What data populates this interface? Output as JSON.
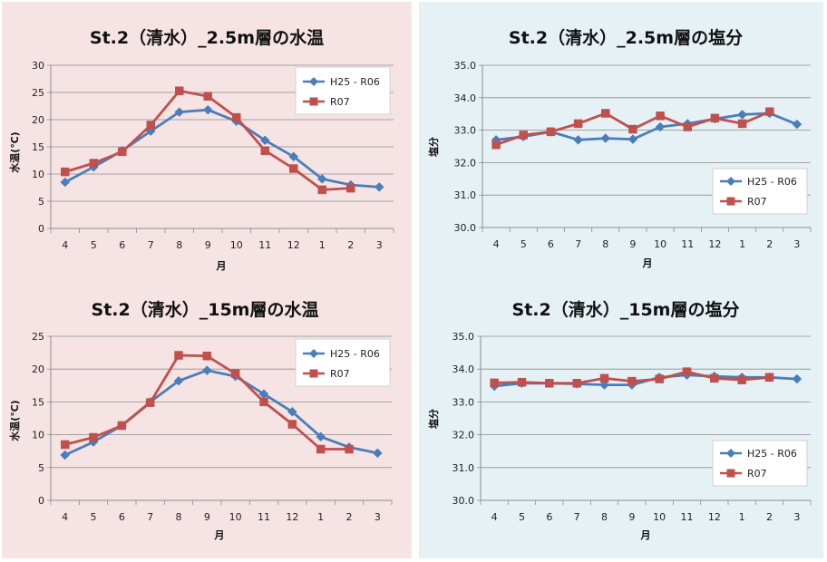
{
  "colors": {
    "series1": "#4a7ebb",
    "series2": "#c0504d",
    "panel_temp": "#f6e4e4",
    "panel_salinity": "#e6f1f6"
  },
  "chart_data": [
    {
      "id": "temp25",
      "type": "line",
      "title": "St.2（清水）_2.5m層の水温",
      "xlabel": "月",
      "ylabel": "水温(℃)",
      "categories": [
        "4",
        "5",
        "6",
        "7",
        "8",
        "9",
        "10",
        "11",
        "12",
        "1",
        "2",
        "3"
      ],
      "ylim": [
        0,
        30
      ],
      "yticks": [
        0,
        5,
        10,
        15,
        20,
        25,
        30
      ],
      "ytick_decimals": 0,
      "grid": true,
      "legend_position": "top-right",
      "series": [
        {
          "name": "H25 - R06",
          "marker": "diamond",
          "values": [
            8.5,
            11.3,
            14.3,
            17.9,
            21.4,
            21.8,
            19.7,
            16.2,
            13.2,
            9.1,
            8.0,
            7.6
          ]
        },
        {
          "name": "R07",
          "marker": "square",
          "values": [
            10.4,
            12.0,
            14.1,
            19.0,
            25.3,
            24.3,
            20.4,
            14.3,
            11.0,
            7.1,
            7.4,
            null
          ]
        }
      ]
    },
    {
      "id": "sal25",
      "type": "line",
      "title": "St.2（清水）_2.5m層の塩分",
      "xlabel": "月",
      "ylabel": "塩分",
      "categories": [
        "4",
        "5",
        "6",
        "7",
        "8",
        "9",
        "10",
        "11",
        "12",
        "1",
        "2",
        "3"
      ],
      "ylim": [
        30,
        35
      ],
      "yticks": [
        30.0,
        31.0,
        32.0,
        33.0,
        34.0,
        35.0
      ],
      "ytick_decimals": 1,
      "grid": true,
      "legend_position": "center-right",
      "series": [
        {
          "name": "H25 - R06",
          "marker": "diamond",
          "values": [
            32.7,
            32.8,
            32.95,
            32.7,
            32.75,
            32.72,
            33.1,
            33.2,
            33.35,
            33.48,
            33.52,
            33.18
          ]
        },
        {
          "name": "R07",
          "marker": "square",
          "values": [
            32.55,
            32.85,
            32.95,
            33.2,
            33.52,
            33.03,
            33.44,
            33.1,
            33.37,
            33.2,
            33.57,
            null
          ]
        }
      ]
    },
    {
      "id": "temp15",
      "type": "line",
      "title": "St.2（清水）_15m層の水温",
      "xlabel": "月",
      "ylabel": "水温(℃)",
      "categories": [
        "4",
        "5",
        "6",
        "7",
        "8",
        "9",
        "10",
        "11",
        "12",
        "1",
        "2",
        "3"
      ],
      "ylim": [
        0,
        25
      ],
      "yticks": [
        0,
        5,
        10,
        15,
        20,
        25
      ],
      "ytick_decimals": 0,
      "grid": true,
      "legend_position": "top-right",
      "series": [
        {
          "name": "H25 - R06",
          "marker": "diamond",
          "values": [
            6.9,
            8.9,
            11.4,
            15.0,
            18.2,
            19.8,
            18.9,
            16.2,
            13.5,
            9.7,
            8.1,
            7.2
          ]
        },
        {
          "name": "R07",
          "marker": "square",
          "values": [
            8.5,
            9.6,
            11.4,
            14.9,
            22.1,
            22.0,
            19.3,
            15.0,
            11.6,
            7.8,
            7.8,
            null
          ]
        }
      ]
    },
    {
      "id": "sal15",
      "type": "line",
      "title": "St.2（清水）_15m層の塩分",
      "xlabel": "月",
      "ylabel": "塩分",
      "categories": [
        "4",
        "5",
        "6",
        "7",
        "8",
        "9",
        "10",
        "11",
        "12",
        "1",
        "2",
        "3"
      ],
      "ylim": [
        30,
        35
      ],
      "yticks": [
        30.0,
        31.0,
        32.0,
        33.0,
        34.0,
        35.0
      ],
      "ytick_decimals": 1,
      "grid": true,
      "legend_position": "bottom-right",
      "series": [
        {
          "name": "H25 - R06",
          "marker": "diamond",
          "values": [
            33.48,
            33.57,
            33.57,
            33.55,
            33.52,
            33.52,
            33.75,
            33.82,
            33.78,
            33.75,
            33.75,
            33.7
          ]
        },
        {
          "name": "R07",
          "marker": "square",
          "values": [
            33.58,
            33.6,
            33.57,
            33.57,
            33.72,
            33.63,
            33.7,
            33.92,
            33.72,
            33.67,
            33.75,
            null
          ]
        }
      ]
    }
  ]
}
